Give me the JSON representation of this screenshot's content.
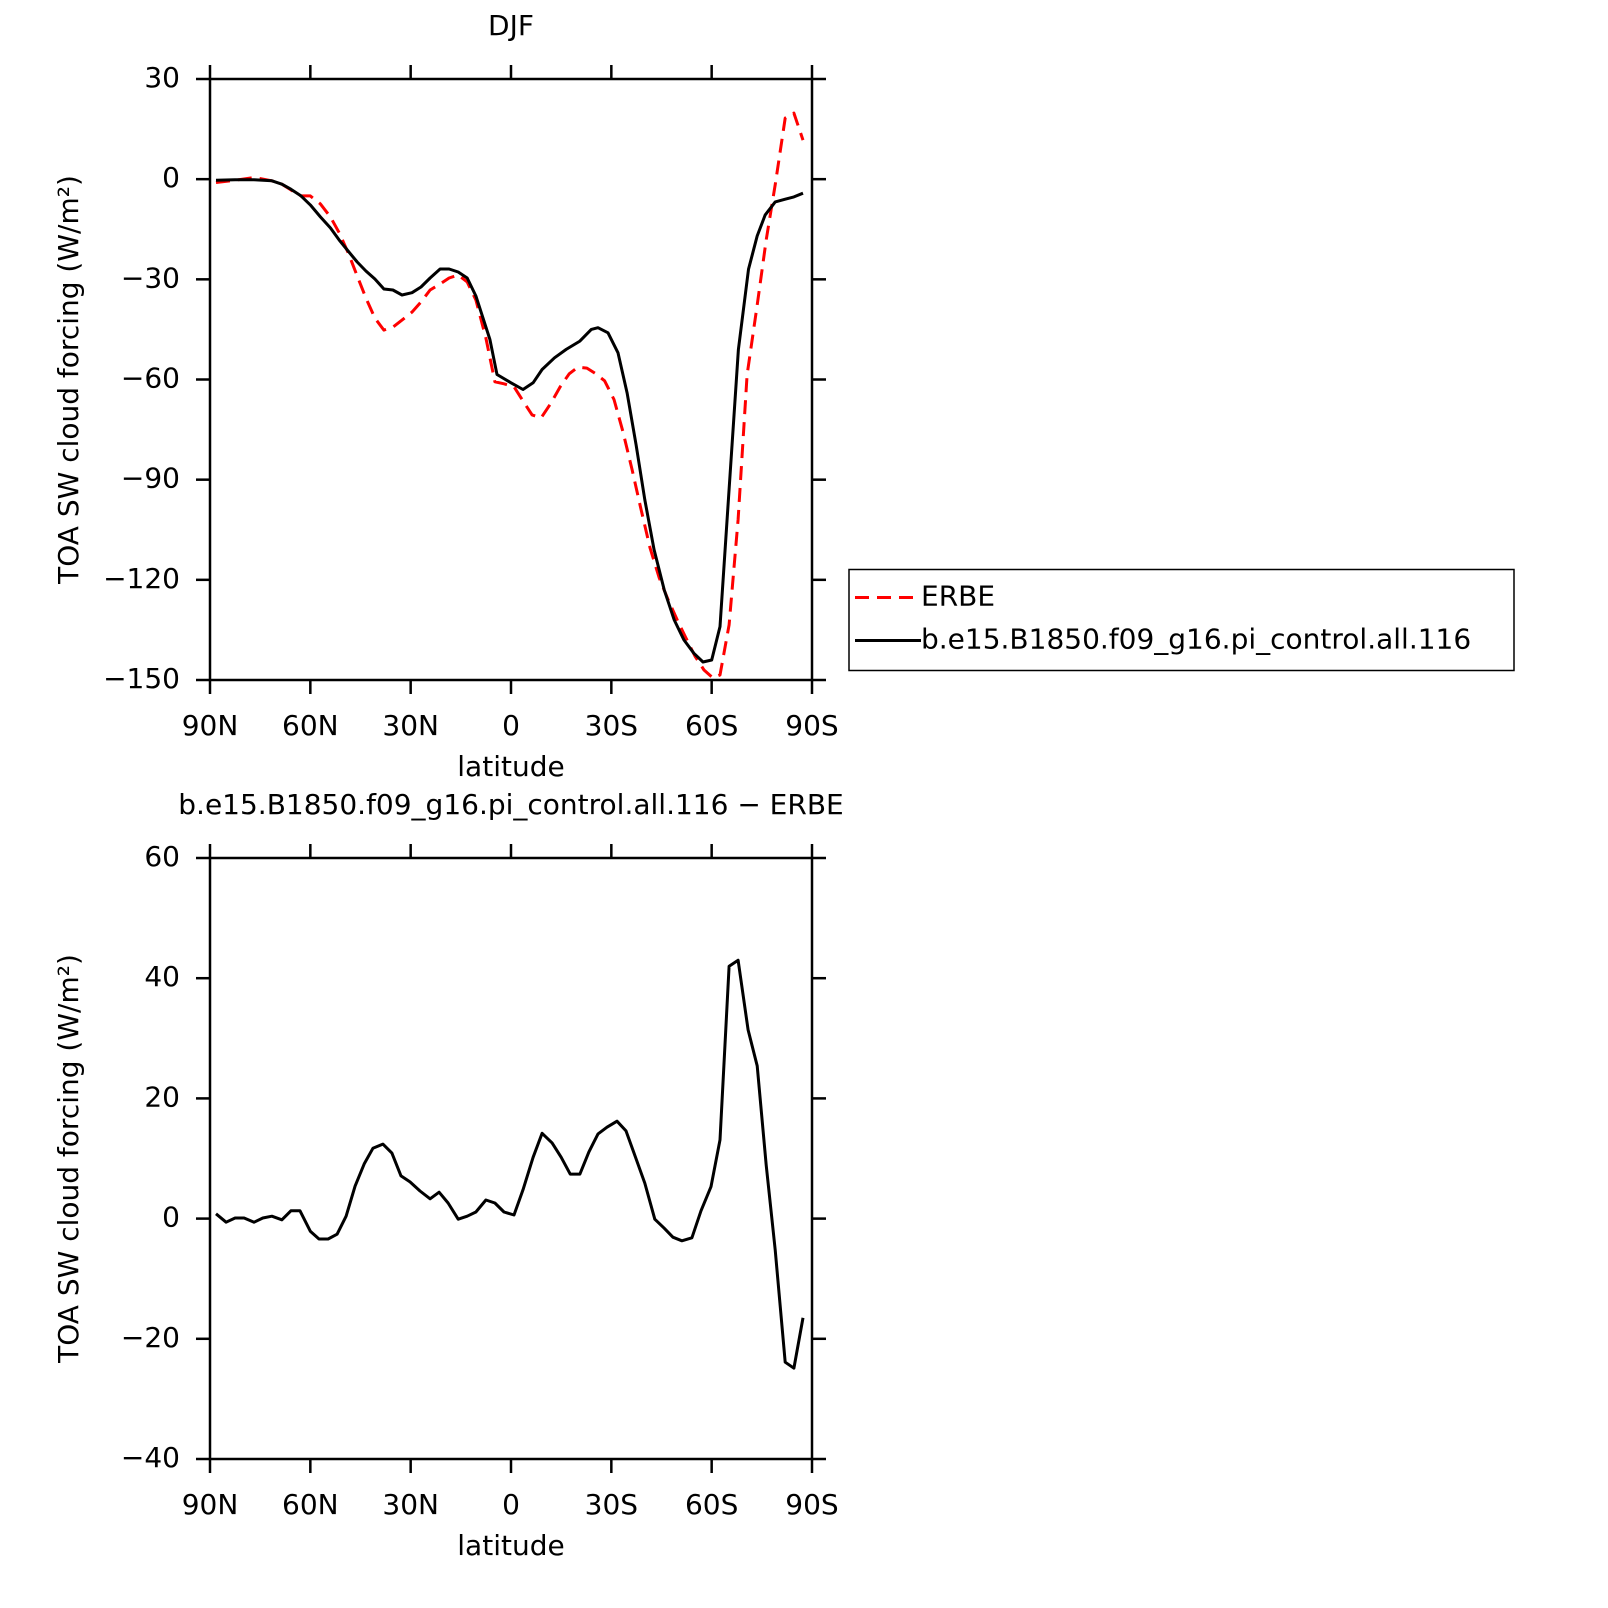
{
  "chart_data": [
    {
      "type": "line",
      "title": "DJF",
      "xlabel": "latitude",
      "ylabel": "TOA SW cloud forcing (W/m²)",
      "xlim": [
        90,
        -90
      ],
      "ylim": [
        30,
        -150
      ],
      "xticks": [
        {
          "value": 90,
          "label": "90N"
        },
        {
          "value": 60,
          "label": "60N"
        },
        {
          "value": 30,
          "label": "30N"
        },
        0,
        {
          "value": -30,
          "label": "30S"
        },
        {
          "value": -60,
          "label": "60S"
        },
        {
          "value": -90,
          "label": "90S"
        }
      ],
      "yticks": [
        30,
        0,
        {
          "value": -30,
          "label": "−30"
        },
        {
          "value": -60,
          "label": "−60"
        },
        {
          "value": -90,
          "label": "−90"
        },
        {
          "value": -120,
          "label": "−120"
        },
        {
          "value": -150,
          "label": "−150"
        }
      ],
      "legend": "right",
      "series": [
        {
          "name": "ERBE",
          "color": "#ff0000",
          "dashed": true,
          "x": [
            88.2,
            82.5,
            76.8,
            71.5,
            68.5,
            65.8,
            62.8,
            60,
            57,
            54,
            51.4,
            48.7,
            46,
            43.4,
            40.7,
            38,
            35.3,
            32.6,
            29.6,
            26.9,
            24.2,
            21.2,
            18.5,
            15.8,
            13.1,
            10.5,
            7.5,
            4.8,
            2.1,
            -0.9,
            -3.6,
            -6.3,
            -9,
            -12,
            -14.7,
            -17.4,
            -20,
            -22.7,
            -25.4,
            -28,
            -30.8,
            -33.5,
            -36.2,
            -38.9,
            -41.6,
            -44.3,
            -47,
            -49.7,
            -52.3,
            -55,
            -57.7,
            -60.4,
            -62.5,
            -65.2,
            -67.9,
            -70.6,
            -73.6,
            -76.3,
            -79,
            -82,
            -84.6,
            -87.3
          ],
          "values": [
            -1,
            -0.3,
            0.5,
            -0.5,
            -1.5,
            -3.2,
            -5,
            -5,
            -7.4,
            -11.3,
            -16,
            -22,
            -29,
            -35.6,
            -41.6,
            -45.2,
            -44.3,
            -42.2,
            -39.8,
            -36.8,
            -33.2,
            -31.4,
            -29.6,
            -28.7,
            -30.8,
            -36.2,
            -47.6,
            -60.7,
            -61.3,
            -62.2,
            -66.4,
            -70.6,
            -71.5,
            -67,
            -62.2,
            -58.3,
            -56.3,
            -56.6,
            -58.3,
            -60.4,
            -66,
            -75.7,
            -87,
            -99,
            -110.5,
            -119.4,
            -126,
            -132,
            -137.4,
            -142.8,
            -147,
            -149.4,
            -148.5,
            -133.5,
            -102,
            -58.6,
            -37.7,
            -18.2,
            -1.7,
            18.3,
            19.8,
            11.7
          ]
        },
        {
          "name": "b.e15.B1850.f09_g16.pi_control.all.116",
          "color": "#000000",
          "dashed": false,
          "x": [
            88.2,
            82.5,
            76.8,
            71.5,
            68.5,
            65.8,
            62.8,
            60,
            57,
            54,
            51.4,
            48.7,
            46,
            43.4,
            40.7,
            38,
            35.3,
            32.6,
            29.6,
            26.9,
            24.2,
            21.2,
            18.5,
            15.8,
            13.1,
            10.5,
            6.3,
            4.2,
            0,
            -3.6,
            -6.6,
            -9.3,
            -13,
            -16.5,
            -20.6,
            -24,
            -26,
            -29,
            -32,
            -34.7,
            -37.4,
            -40,
            -42.8,
            -45.8,
            -48.8,
            -51.7,
            -54.7,
            -57.4,
            -60,
            -62.5,
            -65,
            -68,
            -71,
            -73.6,
            -76,
            -79,
            -82,
            -84.6,
            -87.3
          ],
          "values": [
            -0.3,
            -0.2,
            -0.2,
            -0.5,
            -1.5,
            -3,
            -5,
            -7.7,
            -11.3,
            -14.6,
            -18.2,
            -21.5,
            -24.8,
            -27.5,
            -29.9,
            -32.9,
            -33.2,
            -34.7,
            -34,
            -32.3,
            -29.6,
            -26.9,
            -26.9,
            -27.8,
            -29.6,
            -35,
            -48,
            -58.5,
            -61,
            -63,
            -61,
            -57,
            -53.5,
            -51,
            -48.5,
            -45,
            -44.5,
            -46,
            -52,
            -64,
            -79.6,
            -96,
            -111,
            -123,
            -132,
            -138,
            -142,
            -144.6,
            -144,
            -134,
            -96,
            -51,
            -27,
            -17,
            -10.7,
            -6.8,
            -6,
            -5.3,
            -4.2
          ]
        }
      ]
    },
    {
      "type": "line",
      "title": "b.e15.B1850.f09_g16.pi_control.all.116 − ERBE",
      "xlabel": "latitude",
      "ylabel": "TOA SW cloud forcing (W/m²)",
      "xlim": [
        90,
        -90
      ],
      "ylim": [
        60,
        -40
      ],
      "xticks": [
        {
          "value": 90,
          "label": "90N"
        },
        {
          "value": 60,
          "label": "60N"
        },
        {
          "value": 30,
          "label": "30N"
        },
        0,
        {
          "value": -30,
          "label": "30S"
        },
        {
          "value": -60,
          "label": "60S"
        },
        {
          "value": -90,
          "label": "90S"
        }
      ],
      "yticks": [
        60,
        40,
        20,
        0,
        {
          "value": -20,
          "label": "−20"
        },
        {
          "value": -40,
          "label": "−40"
        }
      ],
      "series": [
        {
          "color": "#000000",
          "dashed": false,
          "x": [
            88.2,
            85.2,
            82.5,
            79.8,
            76.8,
            74.2,
            71.5,
            68.5,
            65.8,
            63.1,
            60,
            57.4,
            54.7,
            52,
            49.3,
            46.6,
            43.9,
            41.3,
            38.3,
            35.6,
            32.9,
            30.2,
            27.2,
            24.2,
            21.5,
            18.8,
            15.8,
            13.1,
            10.5,
            7.5,
            4.8,
            2.1,
            -0.9,
            -3.6,
            -6.6,
            -9.3,
            -12.3,
            -15,
            -17.7,
            -20.6,
            -23.3,
            -26,
            -28.7,
            -31.7,
            -34.4,
            -37.1,
            -40,
            -43,
            -45.8,
            -48.4,
            -51.1,
            -54.1,
            -56.8,
            -59.8,
            -62.5,
            -65.2,
            -67.9,
            -70.9,
            -73.6,
            -76.3,
            -79,
            -82,
            -84.6,
            -87.3
          ],
          "values": [
            0.8,
            -0.6,
            0.1,
            0.1,
            -0.6,
            0.1,
            0.4,
            -0.2,
            1.3,
            1.3,
            -2.1,
            -3.4,
            -3.4,
            -2.6,
            0.4,
            5.4,
            9.1,
            11.7,
            12.4,
            10.9,
            7.1,
            6.1,
            4.6,
            3.3,
            4.4,
            2.6,
            -0.1,
            0.4,
            1.1,
            3.1,
            2.6,
            1.1,
            0.6,
            4.8,
            10.2,
            14.2,
            12.6,
            10.2,
            7.4,
            7.4,
            11.1,
            14.1,
            15.2,
            16.2,
            14.6,
            10.4,
            5.9,
            -0.1,
            -1.6,
            -3.1,
            -3.7,
            -3.2,
            1.3,
            5.3,
            13.1,
            42,
            43,
            31.4,
            25.4,
            8.9,
            -5.2,
            -23.9,
            -24.9,
            -16.5
          ]
        }
      ]
    }
  ]
}
